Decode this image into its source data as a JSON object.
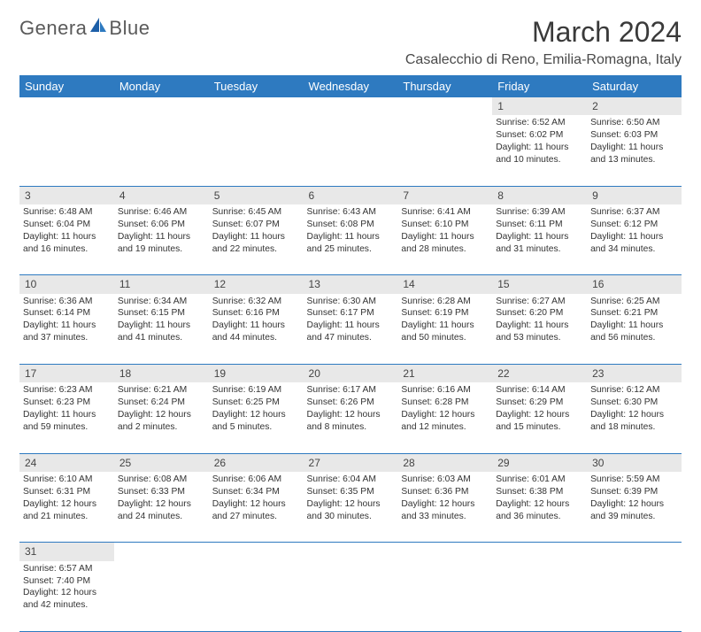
{
  "brand": {
    "text_left": "Genera",
    "text_right": "Blue"
  },
  "title": "March 2024",
  "location": "Casalecchio di Reno, Emilia-Romagna, Italy",
  "colors": {
    "header_bg": "#2e7ac0",
    "header_fg": "#ffffff",
    "cell_border": "#2e7ac0",
    "daynum_bg": "#e8e8e8",
    "text": "#333333"
  },
  "typography": {
    "title_fontsize": 32,
    "location_fontsize": 16,
    "weekday_fontsize": 13,
    "cell_fontsize": 10.3
  },
  "weekdays": [
    "Sunday",
    "Monday",
    "Tuesday",
    "Wednesday",
    "Thursday",
    "Friday",
    "Saturday"
  ],
  "weeks": [
    [
      null,
      null,
      null,
      null,
      null,
      {
        "n": "1",
        "sr": "Sunrise: 6:52 AM",
        "ss": "Sunset: 6:02 PM",
        "d1": "Daylight: 11 hours",
        "d2": "and 10 minutes."
      },
      {
        "n": "2",
        "sr": "Sunrise: 6:50 AM",
        "ss": "Sunset: 6:03 PM",
        "d1": "Daylight: 11 hours",
        "d2": "and 13 minutes."
      }
    ],
    [
      {
        "n": "3",
        "sr": "Sunrise: 6:48 AM",
        "ss": "Sunset: 6:04 PM",
        "d1": "Daylight: 11 hours",
        "d2": "and 16 minutes."
      },
      {
        "n": "4",
        "sr": "Sunrise: 6:46 AM",
        "ss": "Sunset: 6:06 PM",
        "d1": "Daylight: 11 hours",
        "d2": "and 19 minutes."
      },
      {
        "n": "5",
        "sr": "Sunrise: 6:45 AM",
        "ss": "Sunset: 6:07 PM",
        "d1": "Daylight: 11 hours",
        "d2": "and 22 minutes."
      },
      {
        "n": "6",
        "sr": "Sunrise: 6:43 AM",
        "ss": "Sunset: 6:08 PM",
        "d1": "Daylight: 11 hours",
        "d2": "and 25 minutes."
      },
      {
        "n": "7",
        "sr": "Sunrise: 6:41 AM",
        "ss": "Sunset: 6:10 PM",
        "d1": "Daylight: 11 hours",
        "d2": "and 28 minutes."
      },
      {
        "n": "8",
        "sr": "Sunrise: 6:39 AM",
        "ss": "Sunset: 6:11 PM",
        "d1": "Daylight: 11 hours",
        "d2": "and 31 minutes."
      },
      {
        "n": "9",
        "sr": "Sunrise: 6:37 AM",
        "ss": "Sunset: 6:12 PM",
        "d1": "Daylight: 11 hours",
        "d2": "and 34 minutes."
      }
    ],
    [
      {
        "n": "10",
        "sr": "Sunrise: 6:36 AM",
        "ss": "Sunset: 6:14 PM",
        "d1": "Daylight: 11 hours",
        "d2": "and 37 minutes."
      },
      {
        "n": "11",
        "sr": "Sunrise: 6:34 AM",
        "ss": "Sunset: 6:15 PM",
        "d1": "Daylight: 11 hours",
        "d2": "and 41 minutes."
      },
      {
        "n": "12",
        "sr": "Sunrise: 6:32 AM",
        "ss": "Sunset: 6:16 PM",
        "d1": "Daylight: 11 hours",
        "d2": "and 44 minutes."
      },
      {
        "n": "13",
        "sr": "Sunrise: 6:30 AM",
        "ss": "Sunset: 6:17 PM",
        "d1": "Daylight: 11 hours",
        "d2": "and 47 minutes."
      },
      {
        "n": "14",
        "sr": "Sunrise: 6:28 AM",
        "ss": "Sunset: 6:19 PM",
        "d1": "Daylight: 11 hours",
        "d2": "and 50 minutes."
      },
      {
        "n": "15",
        "sr": "Sunrise: 6:27 AM",
        "ss": "Sunset: 6:20 PM",
        "d1": "Daylight: 11 hours",
        "d2": "and 53 minutes."
      },
      {
        "n": "16",
        "sr": "Sunrise: 6:25 AM",
        "ss": "Sunset: 6:21 PM",
        "d1": "Daylight: 11 hours",
        "d2": "and 56 minutes."
      }
    ],
    [
      {
        "n": "17",
        "sr": "Sunrise: 6:23 AM",
        "ss": "Sunset: 6:23 PM",
        "d1": "Daylight: 11 hours",
        "d2": "and 59 minutes."
      },
      {
        "n": "18",
        "sr": "Sunrise: 6:21 AM",
        "ss": "Sunset: 6:24 PM",
        "d1": "Daylight: 12 hours",
        "d2": "and 2 minutes."
      },
      {
        "n": "19",
        "sr": "Sunrise: 6:19 AM",
        "ss": "Sunset: 6:25 PM",
        "d1": "Daylight: 12 hours",
        "d2": "and 5 minutes."
      },
      {
        "n": "20",
        "sr": "Sunrise: 6:17 AM",
        "ss": "Sunset: 6:26 PM",
        "d1": "Daylight: 12 hours",
        "d2": "and 8 minutes."
      },
      {
        "n": "21",
        "sr": "Sunrise: 6:16 AM",
        "ss": "Sunset: 6:28 PM",
        "d1": "Daylight: 12 hours",
        "d2": "and 12 minutes."
      },
      {
        "n": "22",
        "sr": "Sunrise: 6:14 AM",
        "ss": "Sunset: 6:29 PM",
        "d1": "Daylight: 12 hours",
        "d2": "and 15 minutes."
      },
      {
        "n": "23",
        "sr": "Sunrise: 6:12 AM",
        "ss": "Sunset: 6:30 PM",
        "d1": "Daylight: 12 hours",
        "d2": "and 18 minutes."
      }
    ],
    [
      {
        "n": "24",
        "sr": "Sunrise: 6:10 AM",
        "ss": "Sunset: 6:31 PM",
        "d1": "Daylight: 12 hours",
        "d2": "and 21 minutes."
      },
      {
        "n": "25",
        "sr": "Sunrise: 6:08 AM",
        "ss": "Sunset: 6:33 PM",
        "d1": "Daylight: 12 hours",
        "d2": "and 24 minutes."
      },
      {
        "n": "26",
        "sr": "Sunrise: 6:06 AM",
        "ss": "Sunset: 6:34 PM",
        "d1": "Daylight: 12 hours",
        "d2": "and 27 minutes."
      },
      {
        "n": "27",
        "sr": "Sunrise: 6:04 AM",
        "ss": "Sunset: 6:35 PM",
        "d1": "Daylight: 12 hours",
        "d2": "and 30 minutes."
      },
      {
        "n": "28",
        "sr": "Sunrise: 6:03 AM",
        "ss": "Sunset: 6:36 PM",
        "d1": "Daylight: 12 hours",
        "d2": "and 33 minutes."
      },
      {
        "n": "29",
        "sr": "Sunrise: 6:01 AM",
        "ss": "Sunset: 6:38 PM",
        "d1": "Daylight: 12 hours",
        "d2": "and 36 minutes."
      },
      {
        "n": "30",
        "sr": "Sunrise: 5:59 AM",
        "ss": "Sunset: 6:39 PM",
        "d1": "Daylight: 12 hours",
        "d2": "and 39 minutes."
      }
    ],
    [
      {
        "n": "31",
        "sr": "Sunrise: 6:57 AM",
        "ss": "Sunset: 7:40 PM",
        "d1": "Daylight: 12 hours",
        "d2": "and 42 minutes."
      },
      null,
      null,
      null,
      null,
      null,
      null
    ]
  ]
}
